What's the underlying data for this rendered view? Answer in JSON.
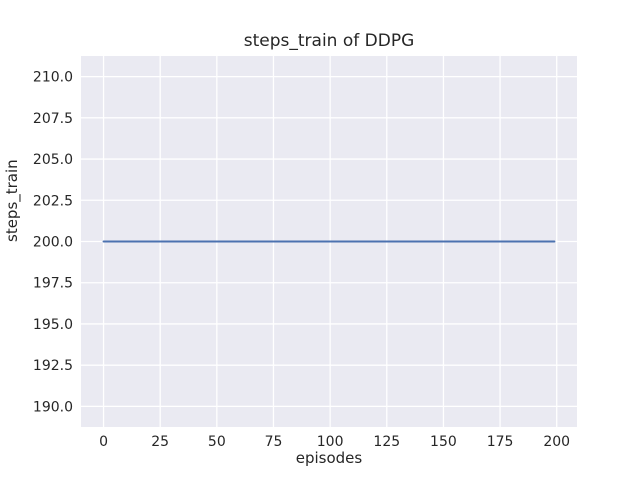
{
  "chart_data": {
    "type": "line",
    "title": "steps_train of DDPG",
    "xlabel": "episodes",
    "ylabel": "steps_train",
    "xlim": [
      -9.95,
      208.95
    ],
    "ylim": [
      188.75,
      211.25
    ],
    "xticklabels": [
      "0",
      "25",
      "50",
      "75",
      "100",
      "125",
      "150",
      "175",
      "200"
    ],
    "yticklabels": [
      "190.0",
      "192.5",
      "195.0",
      "197.5",
      "200.0",
      "202.5",
      "205.0",
      "207.5",
      "210.0"
    ],
    "grid": "on",
    "legend": "none",
    "series": [
      {
        "name": "steps_train",
        "color": "#4c72b0",
        "x": [
          0,
          199
        ],
        "y": [
          200,
          200
        ],
        "note": "constant horizontal line at 200 from episode 0 to 199"
      }
    ],
    "colors": {
      "figure_background": "#ffffff",
      "axes_background": "#eaeaf2",
      "grid_color": "#ffffff",
      "text_color": "#262626",
      "line_color": "#4c72b0"
    }
  }
}
